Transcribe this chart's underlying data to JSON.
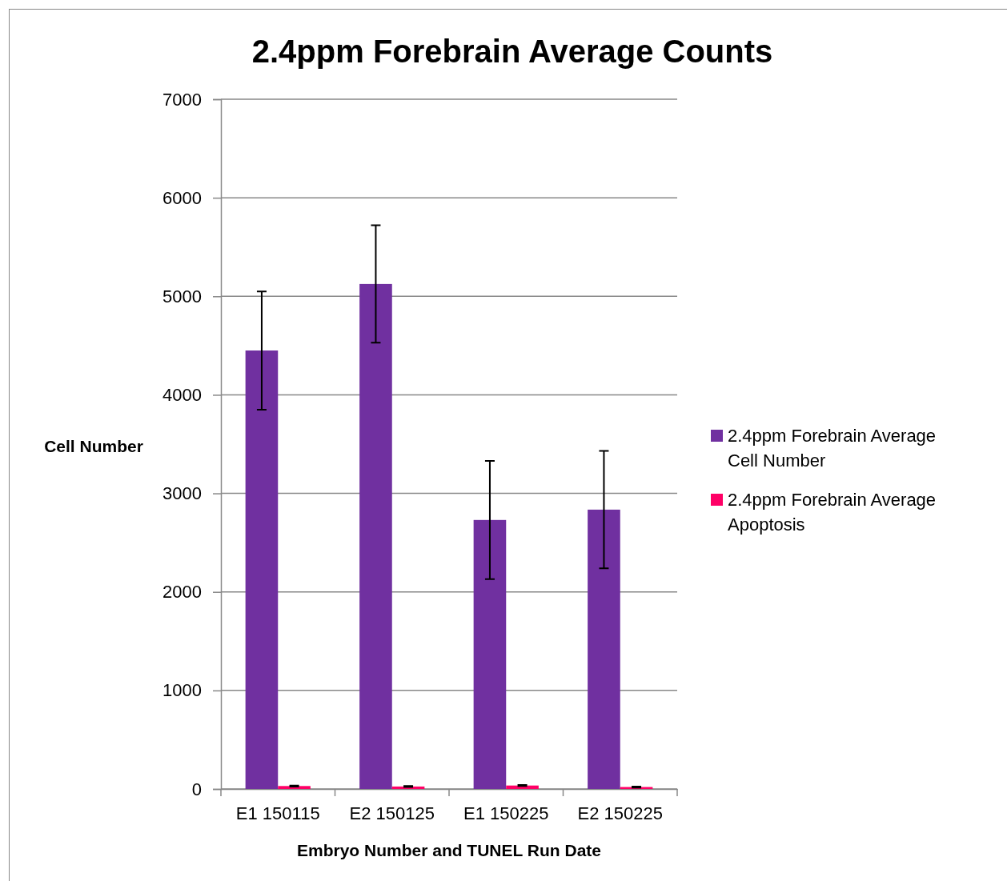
{
  "chart_data": {
    "type": "bar",
    "title": "2.4ppm Forebrain Average Counts",
    "xlabel": "Embryo Number and TUNEL Run Date",
    "ylabel": "Cell Number",
    "categories": [
      "E1 150115",
      "E2 150125",
      "E1 150225",
      "E2 150225"
    ],
    "series": [
      {
        "name": "2.4ppm Forebrain Average Cell Number",
        "color": "#7030a0",
        "values": [
          4450,
          5125,
          2730,
          2835
        ],
        "errors": [
          600,
          595,
          600,
          595
        ]
      },
      {
        "name": "2.4ppm Forebrain Average Apoptosis",
        "color": "#ff0066",
        "values": [
          30,
          25,
          35,
          20
        ],
        "errors": [
          5,
          5,
          5,
          5
        ]
      }
    ],
    "ylim": [
      0,
      7000
    ],
    "yticks": [
      0,
      1000,
      2000,
      3000,
      4000,
      5000,
      6000,
      7000
    ],
    "grid": "y",
    "legend": "right"
  }
}
